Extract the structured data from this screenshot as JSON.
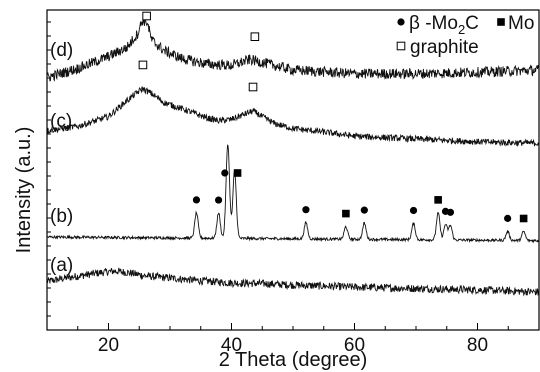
{
  "chart_data": {
    "type": "line",
    "title": "",
    "xlabel": "2 Theta (degree)",
    "ylabel": "Intensity (a.u.)",
    "xlim": [
      10,
      90
    ],
    "x_ticks": [
      20,
      40,
      60,
      80
    ],
    "grid": false,
    "y_tick_labels": "none",
    "panel_labels": [
      "(a)",
      "(b)",
      "(c)",
      "(d)"
    ],
    "series": [
      {
        "label": "(a)",
        "color": "#111111",
        "points": [
          [
            10,
            0.05
          ],
          [
            13,
            0.1
          ],
          [
            16,
            0.14
          ],
          [
            19,
            0.18
          ],
          [
            21,
            0.2
          ],
          [
            23,
            0.18
          ],
          [
            26,
            0.13
          ],
          [
            30,
            0.1
          ],
          [
            35,
            0.06
          ],
          [
            40,
            0.03
          ],
          [
            45,
            0.02
          ],
          [
            50,
            0.0
          ],
          [
            60,
            -0.03
          ],
          [
            70,
            -0.05
          ],
          [
            80,
            -0.07
          ],
          [
            90,
            -0.1
          ]
        ],
        "noise": 0.055
      },
      {
        "label": "(b)",
        "color": "#111111",
        "points": [
          [
            10,
            0.0
          ],
          [
            90,
            -0.04
          ]
        ],
        "peaks": [
          [
            34.3,
            0.28
          ],
          [
            37.9,
            0.28
          ],
          [
            39.4,
            1.05
          ],
          [
            40.5,
            0.75
          ],
          [
            52.1,
            0.18
          ],
          [
            58.6,
            0.14
          ],
          [
            61.6,
            0.18
          ],
          [
            69.6,
            0.18
          ],
          [
            73.6,
            0.3
          ],
          [
            74.8,
            0.17
          ],
          [
            75.6,
            0.16
          ],
          [
            84.9,
            0.1
          ],
          [
            87.5,
            0.1
          ]
        ],
        "noise": 0.015
      },
      {
        "label": "(c)",
        "color": "#111111",
        "points": [
          [
            10,
            0.02
          ],
          [
            15,
            0.08
          ],
          [
            20,
            0.22
          ],
          [
            23,
            0.45
          ],
          [
            25.5,
            0.62
          ],
          [
            27,
            0.55
          ],
          [
            29,
            0.42
          ],
          [
            31,
            0.36
          ],
          [
            33,
            0.3
          ],
          [
            36,
            0.2
          ],
          [
            38,
            0.16
          ],
          [
            40,
            0.18
          ],
          [
            42,
            0.25
          ],
          [
            43.5,
            0.3
          ],
          [
            45,
            0.22
          ],
          [
            47,
            0.12
          ],
          [
            50,
            0.05
          ],
          [
            55,
            0.0
          ],
          [
            60,
            -0.06
          ],
          [
            70,
            -0.1
          ],
          [
            80,
            -0.14
          ],
          [
            90,
            -0.16
          ]
        ],
        "noise": 0.045
      },
      {
        "label": "(d)",
        "color": "#111111",
        "points": [
          [
            10,
            -0.1
          ],
          [
            15,
            0.02
          ],
          [
            20,
            0.18
          ],
          [
            23,
            0.3
          ],
          [
            24.7,
            0.48
          ],
          [
            25.5,
            0.66
          ],
          [
            26.3,
            0.64
          ],
          [
            27,
            0.4
          ],
          [
            29,
            0.26
          ],
          [
            32,
            0.15
          ],
          [
            36,
            0.08
          ],
          [
            40,
            0.06
          ],
          [
            43,
            0.14
          ],
          [
            44,
            0.12
          ],
          [
            46,
            0.08
          ],
          [
            50,
            0.0
          ],
          [
            60,
            -0.05
          ],
          [
            70,
            -0.05
          ],
          [
            80,
            -0.03
          ],
          [
            90,
            0.0
          ]
        ],
        "noise": 0.07
      }
    ],
    "markers": [
      {
        "type": "filled-circle",
        "curve": "(b)",
        "x": 34.3
      },
      {
        "type": "filled-circle",
        "curve": "(b)",
        "x": 37.9
      },
      {
        "type": "filled-circle",
        "curve": "(b)",
        "x": 39.4
      },
      {
        "type": "filled-square",
        "curve": "(b)",
        "x": 40.5
      },
      {
        "type": "filled-circle",
        "curve": "(b)",
        "x": 52.1
      },
      {
        "type": "filled-square",
        "curve": "(b)",
        "x": 58.6
      },
      {
        "type": "filled-circle",
        "curve": "(b)",
        "x": 61.6
      },
      {
        "type": "filled-circle",
        "curve": "(b)",
        "x": 69.6
      },
      {
        "type": "filled-square",
        "curve": "(b)",
        "x": 73.6
      },
      {
        "type": "filled-circle",
        "curve": "(b)",
        "x": 74.8
      },
      {
        "type": "filled-circle",
        "curve": "(b)",
        "x": 75.6
      },
      {
        "type": "filled-circle",
        "curve": "(b)",
        "x": 84.9
      },
      {
        "type": "filled-square",
        "curve": "(b)",
        "x": 87.5
      },
      {
        "type": "open-square",
        "curve": "(c)",
        "x": 25.6
      },
      {
        "type": "open-square",
        "curve": "(c)",
        "x": 43.5
      },
      {
        "type": "open-square",
        "curve": "(d)",
        "x": 26.2
      },
      {
        "type": "open-square",
        "curve": "(d)",
        "x": 43.8
      }
    ],
    "legend": {
      "placement": "top-right",
      "entries": [
        {
          "marker": "filled-circle",
          "text_prefix": "β -Mo",
          "subscript": "2",
          "text_suffix": "C"
        },
        {
          "marker": "filled-square",
          "text": "Mo"
        },
        {
          "marker": "open-square",
          "text": "graphite"
        }
      ]
    }
  }
}
